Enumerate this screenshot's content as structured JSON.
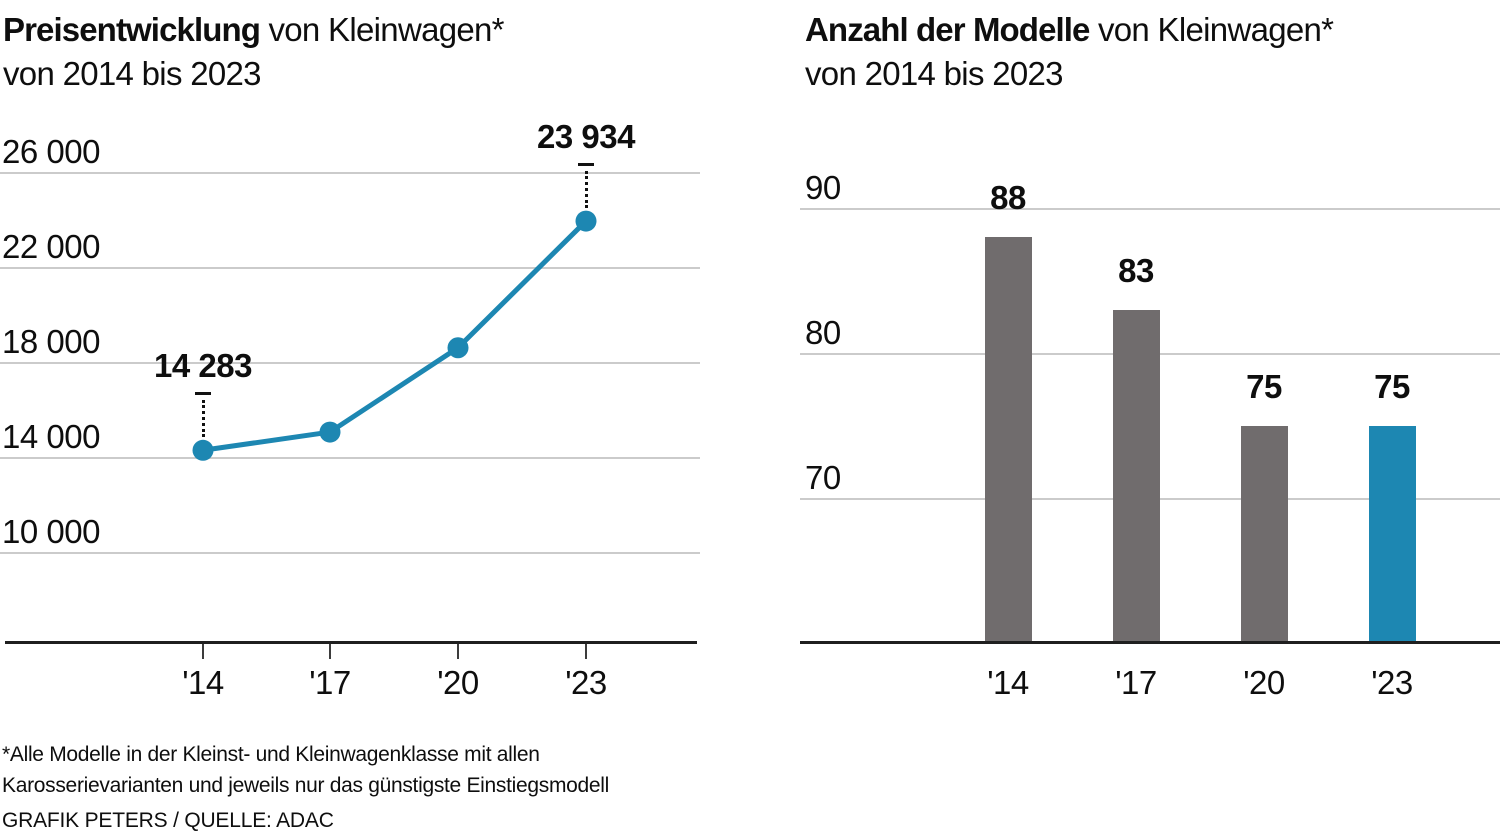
{
  "colors": {
    "teal": "#1d87b2",
    "bar_gray": "#706c6d",
    "gridline": "#cbcbcb",
    "axis": "#1f1f1f",
    "text": "#0e0e0e"
  },
  "left_chart": {
    "title_bold": "Preisentwicklung",
    "title_rest": " von Kleinwagen*",
    "subtitle": "von 2014 bis 2023"
  },
  "right_chart": {
    "title_bold": "Anzahl der Modelle",
    "title_rest": " von Kleinwagen*",
    "subtitle": "von 2014 bis 2023"
  },
  "footnote": {
    "line1": "*Alle Modelle in der Kleinst- und Kleinwagenklasse mit allen",
    "line2": "Karosserievarianten und jeweils nur das günstigste Einstiegsmodell",
    "source": "GRAFIK PETERS / QUELLE: ADAC"
  },
  "chart_data": [
    {
      "type": "line",
      "title": "Preisentwicklung von Kleinwagen* von 2014 bis 2023",
      "categories": [
        "'14",
        "'17",
        "'20",
        "'23"
      ],
      "values": [
        14283,
        15050,
        18600,
        23934
      ],
      "annotated_points": [
        {
          "index": 0,
          "category": "'14",
          "value": 14283,
          "label": "14 283"
        },
        {
          "index": 3,
          "category": "'23",
          "value": 23934,
          "label": "23 934"
        }
      ],
      "yticks": [
        {
          "value": 26000,
          "label": "26 000"
        },
        {
          "value": 22000,
          "label": "22 000"
        },
        {
          "value": 18000,
          "label": "18 000"
        },
        {
          "value": 14000,
          "label": "14 000"
        },
        {
          "value": 10000,
          "label": "10 000"
        }
      ],
      "ylim": [
        6170,
        26000
      ],
      "grid": true,
      "legend": "none",
      "line_color": "#1d87b2"
    },
    {
      "type": "bar",
      "title": "Anzahl der Modelle von Kleinwagen* von 2014 bis 2023",
      "categories": [
        "'14",
        "'17",
        "'20",
        "'23"
      ],
      "values": [
        88,
        83,
        75,
        75
      ],
      "value_labels": [
        "88",
        "83",
        "75",
        "75"
      ],
      "bar_colors": [
        "#706c6d",
        "#706c6d",
        "#706c6d",
        "#1d87b2"
      ],
      "highlight_category": "'23",
      "yticks": [
        {
          "value": 90,
          "label": "90"
        },
        {
          "value": 80,
          "label": "80"
        },
        {
          "value": 70,
          "label": "70"
        }
      ],
      "ylim": [
        60,
        90
      ],
      "grid": true,
      "legend": "none"
    }
  ]
}
